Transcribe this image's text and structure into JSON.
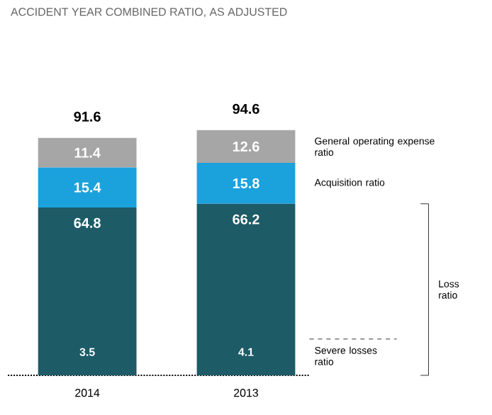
{
  "chart_data": {
    "type": "bar",
    "stacked": true,
    "title": "ACCIDENT YEAR COMBINED RATIO, AS ADJUSTED",
    "categories": [
      "2014",
      "2013"
    ],
    "series": [
      {
        "name": "Loss ratio",
        "color": "#1d5b66",
        "values": [
          64.8,
          66.2
        ]
      },
      {
        "name": "Acquisition ratio",
        "color": "#1ba1dc",
        "values": [
          15.4,
          15.8
        ]
      },
      {
        "name": "General operating expense ratio",
        "color": "#a6a6a6",
        "values": [
          11.4,
          12.6
        ]
      }
    ],
    "data_labels": true,
    "totals": [
      "91.6",
      "94.6"
    ],
    "annotations": [
      "3.5",
      "4.1",
      "Severe losses ratio"
    ]
  }
}
